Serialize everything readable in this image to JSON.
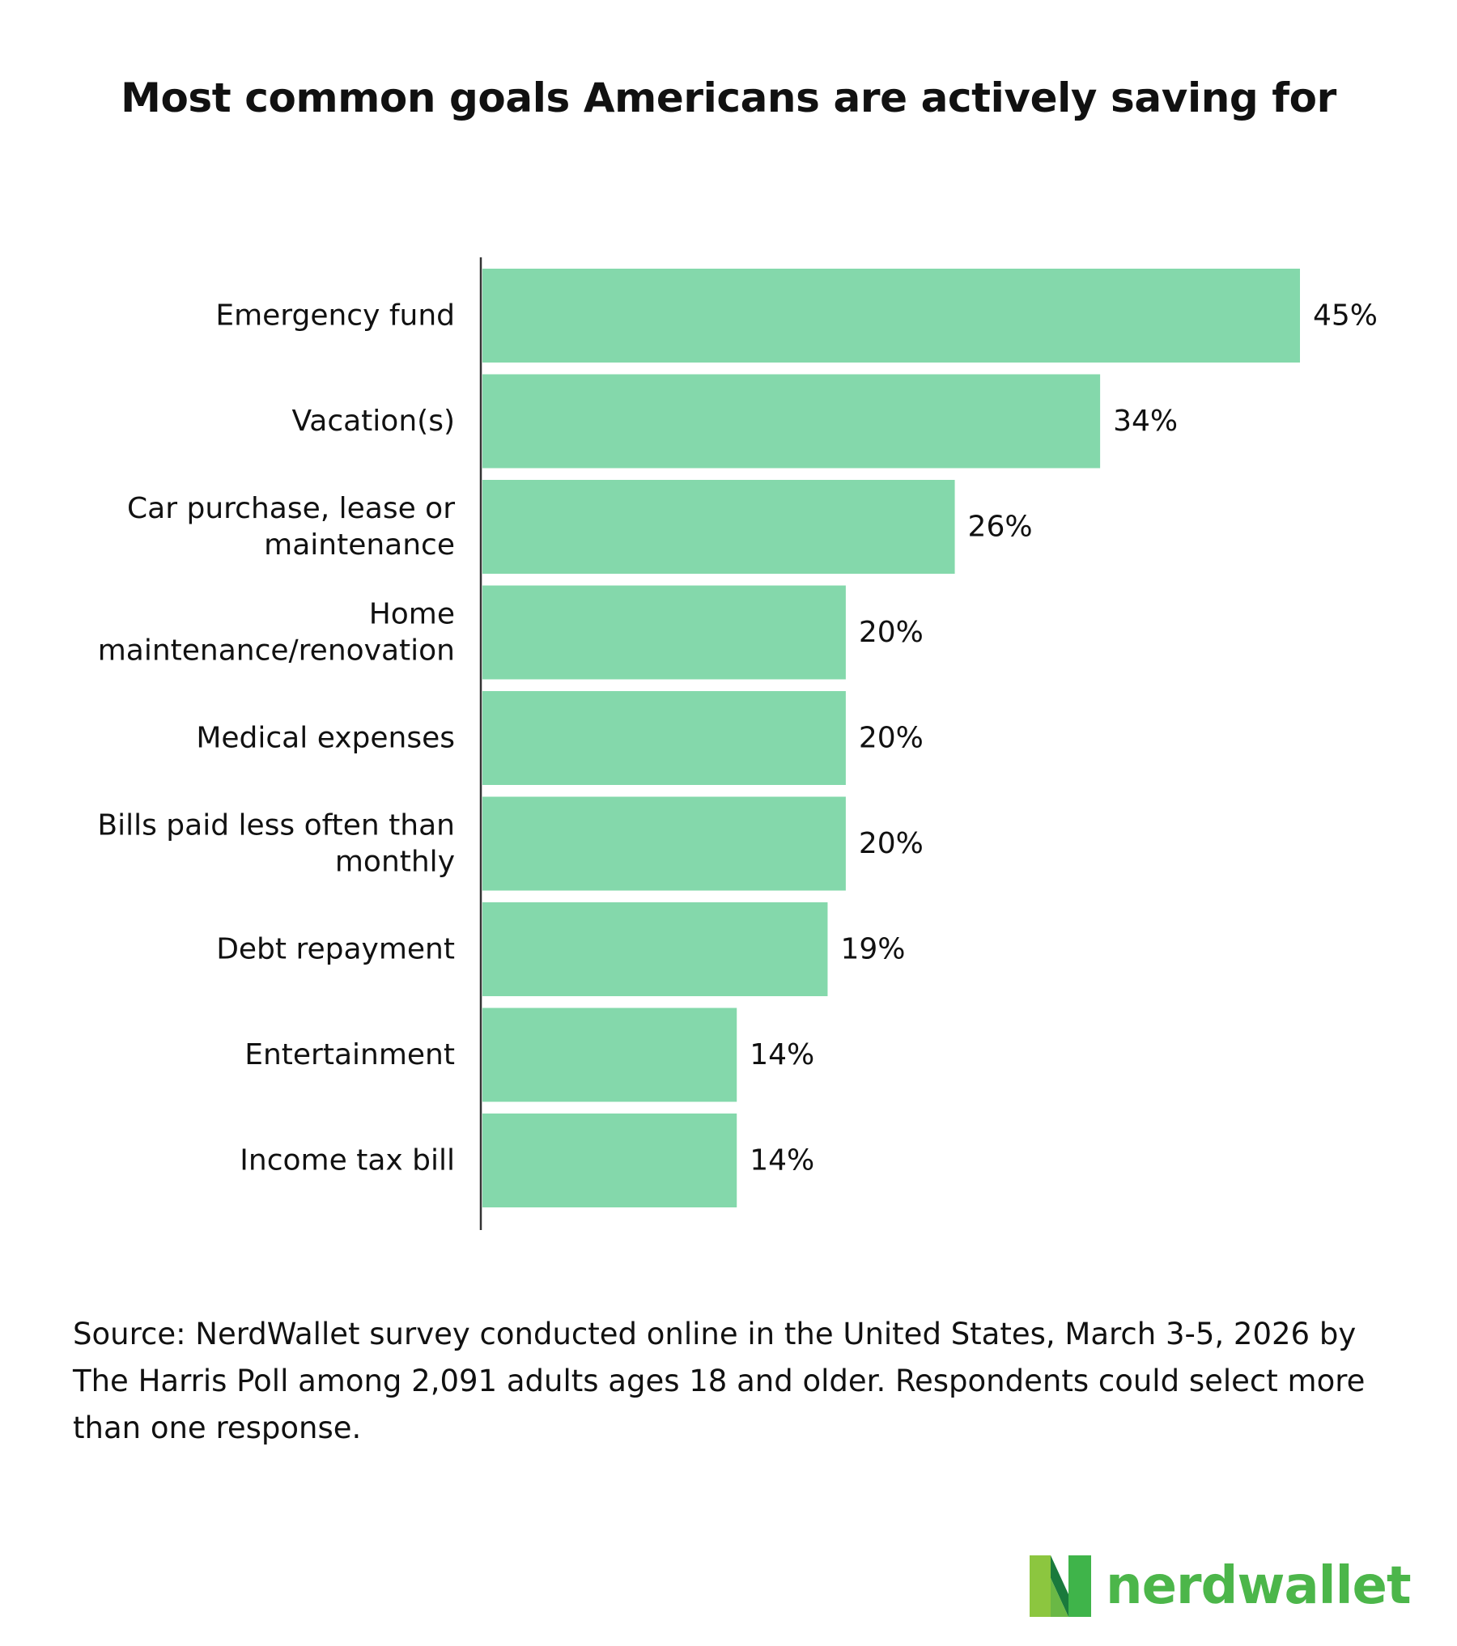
{
  "chart_data": {
    "type": "bar",
    "orientation": "horizontal",
    "title": "Most common goals Americans are actively saving for",
    "categories": [
      [
        "Emergency fund"
      ],
      [
        "Vacation(s)"
      ],
      [
        "Car purchase, lease or",
        "maintenance"
      ],
      [
        "Home",
        "maintenance/renovation"
      ],
      [
        "Medical expenses"
      ],
      [
        "Bills paid less often than",
        "monthly"
      ],
      [
        "Debt repayment"
      ],
      [
        "Entertainment"
      ],
      [
        "Income tax bill"
      ]
    ],
    "values": [
      45,
      34,
      26,
      20,
      20,
      20,
      19,
      14,
      14
    ],
    "value_labels": [
      "45%",
      "34%",
      "26%",
      "20%",
      "20%",
      "20%",
      "19%",
      "14%",
      "14%"
    ],
    "unit": "%",
    "xlabel": "",
    "ylabel": "",
    "xlim": [
      0,
      45
    ],
    "grid": false,
    "bar_color": "#84d8ab"
  },
  "footer": {
    "source": "Source: NerdWallet survey conducted online in the United States, March 3-5, 2026 by The Harris Poll among 2,091 adults ages 18 and older. Respondents could select more than one response."
  },
  "logo": {
    "text": "nerdwallet",
    "color": "#4cb64a"
  }
}
